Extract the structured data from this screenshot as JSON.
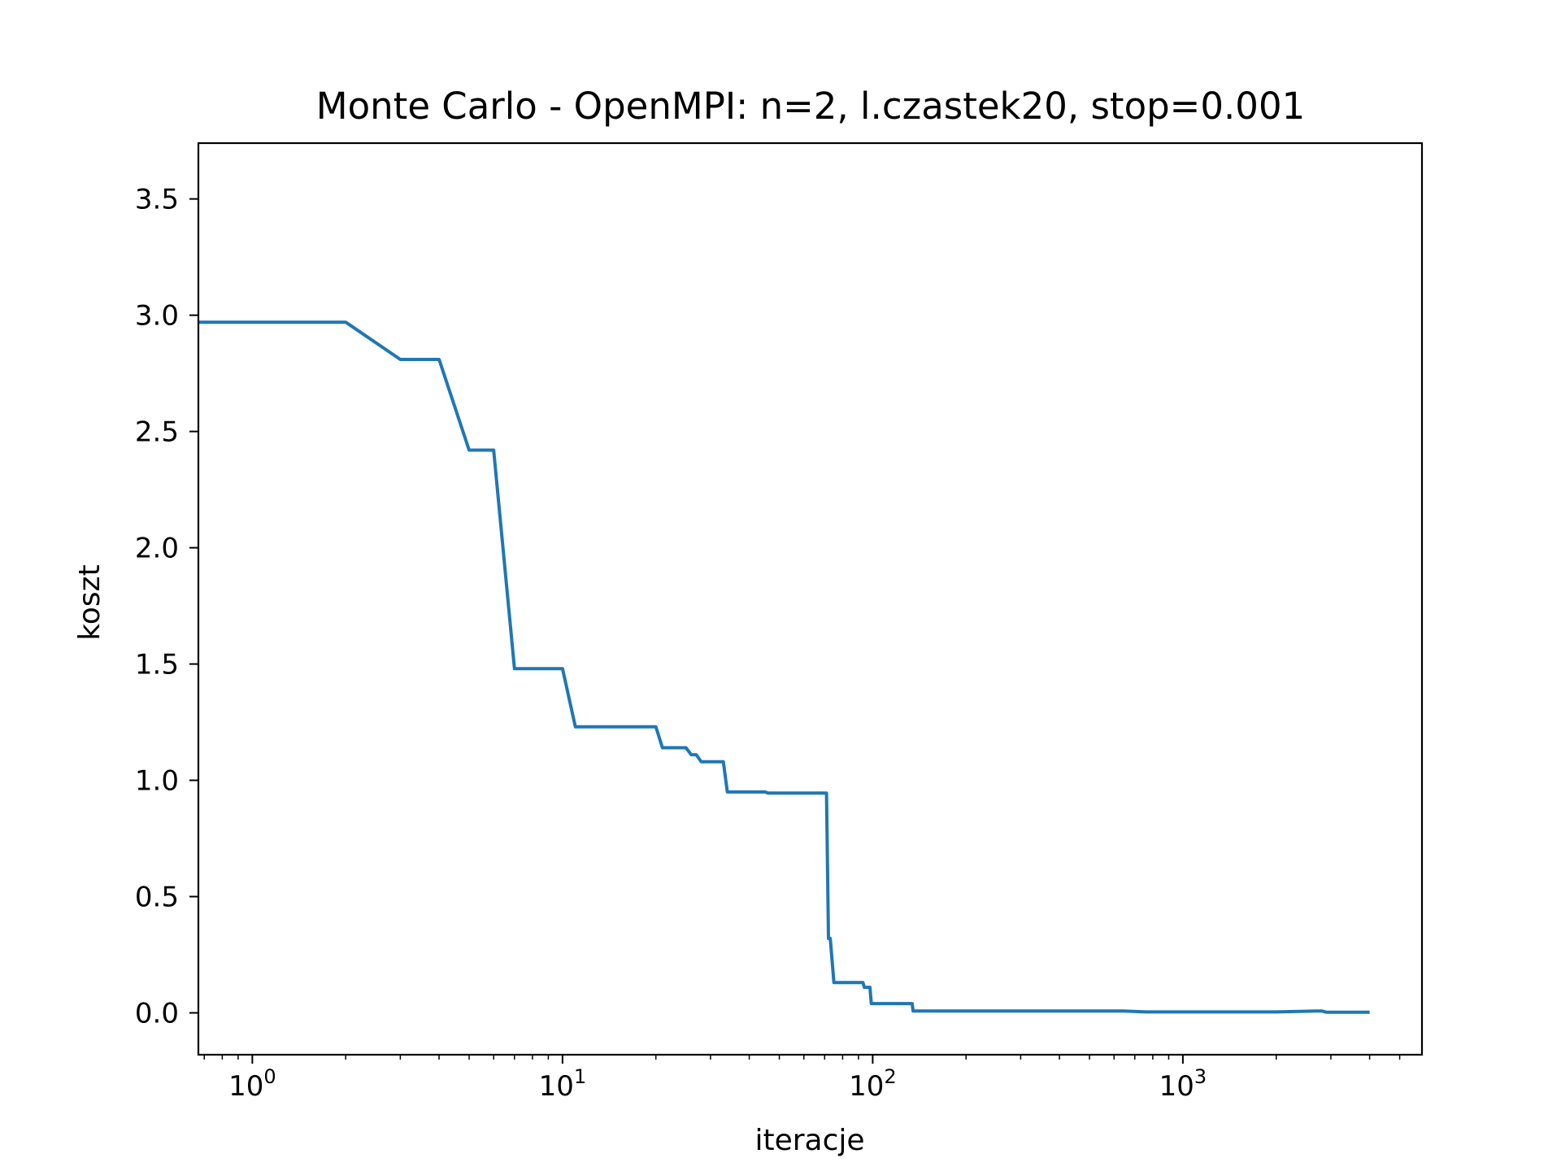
{
  "chart_data": {
    "type": "line",
    "title": "Monte Carlo - OpenMPI: n=2, l.czastek20, stop=0.001",
    "xlabel": "iteracje",
    "ylabel": "koszt",
    "xscale": "log",
    "xlim": [
      0.67,
      5900
    ],
    "ylim": [
      -0.18,
      3.74
    ],
    "grid": false,
    "legend": "none",
    "x_ticks": [
      {
        "value": 1,
        "base": "10",
        "exp": "0"
      },
      {
        "value": 10,
        "base": "10",
        "exp": "1"
      },
      {
        "value": 100,
        "base": "10",
        "exp": "2"
      },
      {
        "value": 1000,
        "base": "10",
        "exp": "3"
      }
    ],
    "y_ticks": [
      {
        "value": 0.0,
        "label": "0.0"
      },
      {
        "value": 0.5,
        "label": "0.5"
      },
      {
        "value": 1.0,
        "label": "1.0"
      },
      {
        "value": 1.5,
        "label": "1.5"
      },
      {
        "value": 2.0,
        "label": "2.0"
      },
      {
        "value": 2.5,
        "label": "2.5"
      },
      {
        "value": 3.0,
        "label": "3.0"
      },
      {
        "value": 3.5,
        "label": "3.5"
      }
    ],
    "series": [
      {
        "color": "#1f77b4",
        "x": [
          0.67,
          2,
          3,
          4,
          5,
          6,
          7,
          10,
          11,
          20,
          21,
          25,
          26,
          27,
          28,
          33,
          34,
          45,
          46,
          71,
          72,
          73,
          75,
          93,
          94,
          98,
          99,
          134,
          135,
          640,
          760,
          2000,
          2700,
          2800,
          2900,
          4000
        ],
        "y": [
          2.97,
          2.97,
          2.81,
          2.81,
          2.42,
          2.42,
          1.48,
          1.48,
          1.23,
          1.23,
          1.14,
          1.14,
          1.11,
          1.11,
          1.08,
          1.08,
          0.95,
          0.95,
          0.945,
          0.945,
          0.32,
          0.32,
          0.13,
          0.13,
          0.11,
          0.11,
          0.04,
          0.04,
          0.008,
          0.008,
          0.004,
          0.004,
          0.008,
          0.008,
          0.003,
          0.003
        ]
      }
    ]
  }
}
